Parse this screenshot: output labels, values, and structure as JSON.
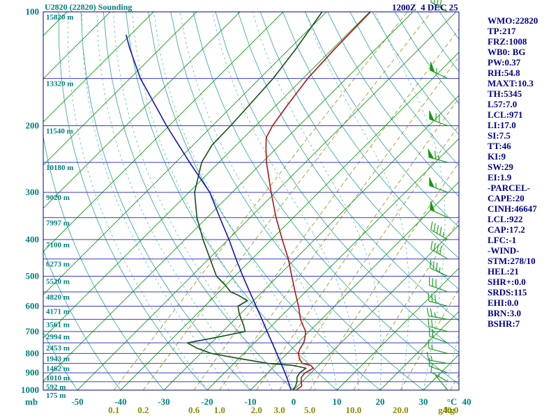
{
  "header": {
    "title": "U2820 (22820) Sounding",
    "datetime": "1200Z  4 DEC 25"
  },
  "right_panel": {
    "lines": [
      "WMO:22820",
      "TP:217",
      "FRZ:1008",
      "WB0: BG",
      "PW:0.37",
      "RH:54.8",
      "MAXT:10.3",
      "TH:5345",
      "L57:7.0",
      "LCL:971",
      "LI:17.0",
      "SI:7.5",
      "TT:46",
      "KI:9",
      "SW:29",
      "EI:1.9",
      "-PARCEL-",
      "CAPE:20",
      "CINH:46647",
      "LCL:922",
      "CAP:17.2",
      "LFC:-1",
      "-WIND-",
      "STM:278/10",
      "HEL:21",
      "SHR+:0.0",
      "SRDS:115",
      "EHI:0.0",
      "BRN:3.0",
      "BSHR:7"
    ]
  },
  "colors": {
    "teal": "#008080",
    "navy": "#00008b",
    "olive": "#8b8b00",
    "isobar": "#3a3ac8",
    "isotherm": "#0f9b0f",
    "dry_adiabat": "#2aa198",
    "moist_adiabat": "#56bcbc",
    "mixing": "#9a9a22",
    "barb": "#0f9b0f",
    "temperature": "#b01313",
    "dewpoint": "#134f13",
    "parcel": "#1414b8"
  },
  "chart_data": {
    "type": "line",
    "subtype": "skewt-log-p",
    "pressure_axis": {
      "unit_label": "mb",
      "range": [
        100,
        1000
      ],
      "major_ticks": [
        100,
        200,
        300,
        400,
        500,
        600,
        700,
        800,
        900,
        1000
      ],
      "minor_step_mb": 50,
      "scale": "log"
    },
    "temp_axis": {
      "unit_label": "°C",
      "ticks": [
        -50,
        -40,
        -30,
        -20,
        -10,
        0,
        10,
        20,
        30,
        40
      ],
      "skew_deg": 45
    },
    "mixing_ratio_axis": {
      "unit_label": "g/kg",
      "ticks": [
        0.1,
        0.2,
        0.6,
        1.0,
        2.0,
        3.0,
        5.0,
        10.0,
        20.0,
        40.0
      ]
    },
    "height_labels": [
      {
        "p": 100,
        "label": "15820 m"
      },
      {
        "p": 150,
        "label": "13320 m"
      },
      {
        "p": 200,
        "label": "11540 m"
      },
      {
        "p": 250,
        "label": "10180 m"
      },
      {
        "p": 300,
        "label": "9020 m"
      },
      {
        "p": 350,
        "label": "7997 m"
      },
      {
        "p": 400,
        "label": "7100 m"
      },
      {
        "p": 450,
        "label": "6273 m"
      },
      {
        "p": 500,
        "label": "5520 m"
      },
      {
        "p": 550,
        "label": "4820 m"
      },
      {
        "p": 600,
        "label": "4171 m"
      },
      {
        "p": 650,
        "label": "3561 m"
      },
      {
        "p": 700,
        "label": "2994 m"
      },
      {
        "p": 750,
        "label": "2453 m"
      },
      {
        "p": 800,
        "label": "1943 m"
      },
      {
        "p": 850,
        "label": "1462 m"
      },
      {
        "p": 900,
        "label": "1010 m"
      },
      {
        "p": 950,
        "label": "592 m"
      },
      {
        "p": 1000,
        "label": "175 m"
      }
    ],
    "isotherms_c": {
      "min": -150,
      "max": 40,
      "step": 10
    },
    "dry_adiabats_c": {
      "min": -60,
      "max": 160,
      "step": 10
    },
    "moist_adiabats_c": {
      "min": -20,
      "max": 40,
      "step": 5
    },
    "series": [
      {
        "name": "temperature",
        "color": "#b01313",
        "points": [
          [
            1000,
            0.6
          ],
          [
            975,
            0.9
          ],
          [
            950,
            -0.2
          ],
          [
            925,
            -1.2
          ],
          [
            900,
            -1.4
          ],
          [
            875,
            -0.5
          ],
          [
            860,
            -1.8
          ],
          [
            850,
            -4.2
          ],
          [
            825,
            -6.0
          ],
          [
            800,
            -7.4
          ],
          [
            775,
            -8.2
          ],
          [
            750,
            -8.6
          ],
          [
            725,
            -9.6
          ],
          [
            700,
            -10.8
          ],
          [
            650,
            -14.8
          ],
          [
            600,
            -18.3
          ],
          [
            550,
            -22.4
          ],
          [
            500,
            -26.8
          ],
          [
            450,
            -31.6
          ],
          [
            400,
            -37.5
          ],
          [
            350,
            -44.0
          ],
          [
            300,
            -51.0
          ],
          [
            250,
            -59.0
          ],
          [
            230,
            -62.3
          ],
          [
            215,
            -64.8
          ],
          [
            200,
            -66.1
          ],
          [
            175,
            -67.5
          ],
          [
            150,
            -68.9
          ],
          [
            125,
            -69.5
          ],
          [
            100,
            -69.8
          ]
        ]
      },
      {
        "name": "dewpoint",
        "color": "#134f13",
        "points": [
          [
            1000,
            -0.2
          ],
          [
            975,
            -0.5
          ],
          [
            950,
            -1.2
          ],
          [
            925,
            -2.2
          ],
          [
            900,
            -2.6
          ],
          [
            875,
            -2.2
          ],
          [
            860,
            -6.0
          ],
          [
            850,
            -12.0
          ],
          [
            825,
            -20.0
          ],
          [
            800,
            -27.5
          ],
          [
            775,
            -32.0
          ],
          [
            750,
            -35.5
          ],
          [
            725,
            -30.0
          ],
          [
            700,
            -24.8
          ],
          [
            675,
            -26.5
          ],
          [
            650,
            -28.5
          ],
          [
            625,
            -30.5
          ],
          [
            600,
            -32.3
          ],
          [
            580,
            -31.4
          ],
          [
            560,
            -35.0
          ],
          [
            550,
            -37.3
          ],
          [
            525,
            -40.5
          ],
          [
            500,
            -44.2
          ],
          [
            450,
            -49.7
          ],
          [
            400,
            -55.8
          ],
          [
            350,
            -62.3
          ],
          [
            300,
            -68.7
          ],
          [
            250,
            -74.0
          ],
          [
            225,
            -75.6
          ],
          [
            200,
            -75.8
          ],
          [
            175,
            -76.3
          ],
          [
            150,
            -76.9
          ],
          [
            125,
            -78.5
          ],
          [
            100,
            -81.0
          ]
        ]
      },
      {
        "name": "parcel",
        "color": "#1414b8",
        "points": [
          [
            1000,
            -0.6
          ],
          [
            950,
            -3.2
          ],
          [
            900,
            -6.0
          ],
          [
            850,
            -9.1
          ],
          [
            800,
            -12.4
          ],
          [
            750,
            -15.9
          ],
          [
            700,
            -19.7
          ],
          [
            650,
            -23.7
          ],
          [
            600,
            -28.1
          ],
          [
            550,
            -32.9
          ],
          [
            500,
            -38.1
          ],
          [
            450,
            -43.7
          ],
          [
            400,
            -49.8
          ],
          [
            350,
            -57.0
          ],
          [
            300,
            -65.2
          ],
          [
            250,
            -76.8
          ],
          [
            200,
            -90.6
          ],
          [
            150,
            -107.6
          ],
          [
            125,
            -117.0
          ],
          [
            115,
            -121.0
          ]
        ]
      }
    ],
    "winds": [
      {
        "p": 1000,
        "dir": 320,
        "spd": 5
      },
      {
        "p": 950,
        "dir": 300,
        "spd": 10
      },
      {
        "p": 900,
        "dir": 290,
        "spd": 10
      },
      {
        "p": 850,
        "dir": 280,
        "spd": 15
      },
      {
        "p": 800,
        "dir": 285,
        "spd": 15
      },
      {
        "p": 750,
        "dir": 290,
        "spd": 20
      },
      {
        "p": 700,
        "dir": 285,
        "spd": 20
      },
      {
        "p": 650,
        "dir": 280,
        "spd": 25
      },
      {
        "p": 600,
        "dir": 285,
        "spd": 30
      },
      {
        "p": 550,
        "dir": 290,
        "spd": 30
      },
      {
        "p": 500,
        "dir": 295,
        "spd": 35
      },
      {
        "p": 450,
        "dir": 300,
        "spd": 40
      },
      {
        "p": 400,
        "dir": 300,
        "spd": 45
      },
      {
        "p": 350,
        "dir": 295,
        "spd": 50
      },
      {
        "p": 300,
        "dir": 290,
        "spd": 55
      },
      {
        "p": 250,
        "dir": 285,
        "spd": 65
      },
      {
        "p": 200,
        "dir": 290,
        "spd": 70
      },
      {
        "p": 150,
        "dir": 295,
        "spd": 55
      },
      {
        "p": 100,
        "dir": 300,
        "spd": 40
      }
    ]
  }
}
